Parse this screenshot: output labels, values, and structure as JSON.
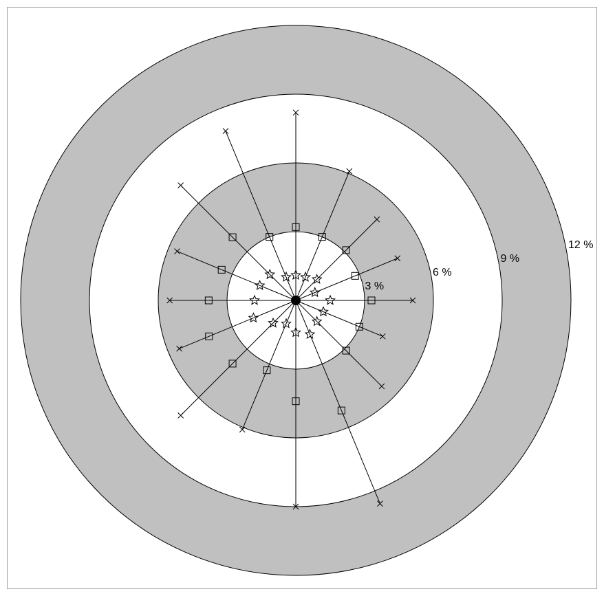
{
  "chart_data": {
    "type": "polar",
    "rlim": [
      0,
      12
    ],
    "rticks": [
      {
        "value": 3,
        "label": "3 %"
      },
      {
        "value": 6,
        "label": "6 %"
      },
      {
        "value": 9,
        "label": "9 %"
      },
      {
        "value": 12,
        "label": "12 %"
      }
    ],
    "ring_colors": [
      "#ffffff",
      "#c0c0c0",
      "#ffffff",
      "#c0c0c0"
    ],
    "x": [
      90,
      67.5,
      45,
      22.5,
      0,
      -22.5,
      -45,
      -67.5,
      -90,
      -112.5,
      -135,
      -157.5,
      180,
      157.5,
      135,
      112.5
    ],
    "series": [
      {
        "marker": "x",
        "color": "#000000",
        "values": [
          8.2,
          6.1,
          5.0,
          4.8,
          5.1,
          4.1,
          5.3,
          9.6,
          9.0,
          6.1,
          7.1,
          5.5,
          5.5,
          5.6,
          7.1,
          8.0
        ]
      },
      {
        "marker": "square",
        "color": "#000000",
        "values": [
          3.2,
          3.0,
          3.1,
          2.8,
          3.3,
          3.0,
          3.1,
          5.2,
          4.4,
          3.3,
          3.9,
          4.1,
          3.8,
          3.5,
          3.9,
          3.0
        ]
      },
      {
        "marker": "star",
        "color": "#000000",
        "values": [
          1.1,
          1.1,
          1.3,
          0.9,
          1.5,
          1.3,
          1.3,
          1.6,
          1.4,
          1.1,
          1.4,
          2.0,
          1.8,
          1.7,
          1.6,
          1.1
        ]
      }
    ]
  }
}
